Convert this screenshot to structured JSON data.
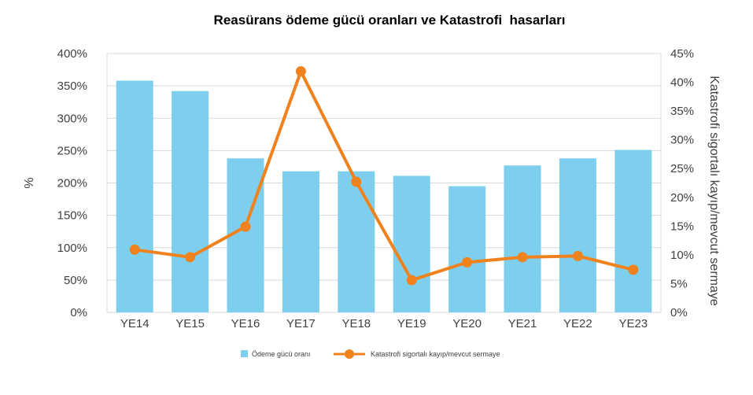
{
  "chart_data": {
    "type": "bar",
    "title": "Reasürans ödeme gücü oranları ve Katastrofi  hasarları",
    "categories": [
      "YE14",
      "YE15",
      "YE16",
      "YE17",
      "YE18",
      "YE19",
      "YE20",
      "YE21",
      "YE22",
      "YE23"
    ],
    "series": [
      {
        "name": "Ödeme gücü oranı",
        "type": "bar",
        "axis": "left",
        "color": "#7ecfee",
        "values": [
          358,
          342,
          238,
          218,
          218,
          211,
          195,
          227,
          238,
          251
        ]
      },
      {
        "name": "Katastrofi sigortalı kayıp/mevcut sermaye",
        "type": "line",
        "axis": "right",
        "color": "#f0821e",
        "values": [
          10.9,
          9.6,
          14.9,
          41.9,
          22.7,
          5.6,
          8.7,
          9.6,
          9.8,
          7.4
        ]
      }
    ],
    "ylabel": "%",
    "ylabel_right": "Katastrofi sigortalı kayıp/mevcut sermaye",
    "ylim": [
      0,
      400
    ],
    "ylim_right": [
      0,
      45
    ],
    "yticks": [
      "0%",
      "50%",
      "100%",
      "150%",
      "200%",
      "250%",
      "300%",
      "350%",
      "400%"
    ],
    "yticks_right": [
      "0%",
      "5%",
      "10%",
      "15%",
      "20%",
      "25%",
      "30%",
      "35%",
      "40%",
      "45%"
    ],
    "grid": true,
    "legend_position": "bottom"
  }
}
